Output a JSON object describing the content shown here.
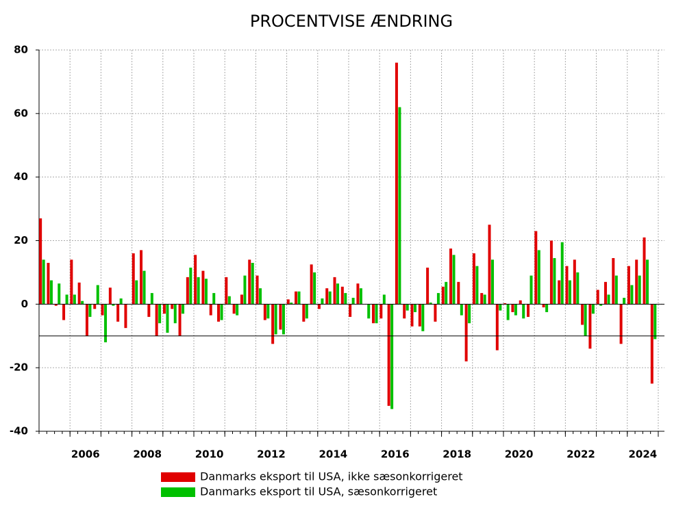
{
  "chart_data": {
    "type": "bar",
    "title": "PROCENTVISE ÆNDRING",
    "x": [
      2005.125,
      2005.375,
      2005.625,
      2005.875,
      2006.125,
      2006.375,
      2006.625,
      2006.875,
      2007.125,
      2007.375,
      2007.625,
      2007.875,
      2008.125,
      2008.375,
      2008.625,
      2008.875,
      2009.125,
      2009.375,
      2009.625,
      2009.875,
      2010.125,
      2010.375,
      2010.625,
      2010.875,
      2011.125,
      2011.375,
      2011.625,
      2011.875,
      2012.125,
      2012.375,
      2012.625,
      2012.875,
      2013.125,
      2013.375,
      2013.625,
      2013.875,
      2014.125,
      2014.375,
      2014.625,
      2014.875,
      2015.125,
      2015.375,
      2015.625,
      2015.875,
      2016.125,
      2016.375,
      2016.625,
      2016.875,
      2017.125,
      2017.375,
      2017.625,
      2017.875,
      2018.125,
      2018.375,
      2018.625,
      2018.875,
      2019.125,
      2019.375,
      2019.625,
      2019.875,
      2020.125,
      2020.375,
      2020.625,
      2020.875,
      2021.125,
      2021.375,
      2021.625,
      2021.875,
      2022.125,
      2022.375,
      2022.625,
      2022.875,
      2023.125,
      2023.375,
      2023.625,
      2023.875,
      2024.125,
      2024.375,
      2024.625,
      2024.875
    ],
    "series": [
      {
        "name": "Danmarks eksport til USA, ikke sæsonkorrigeret",
        "color": "#e00000",
        "values": [
          27,
          13,
          -0.5,
          -5,
          14,
          6.8,
          -10,
          -1.5,
          -3.5,
          5.2,
          -5.5,
          -7.5,
          16,
          17,
          -4,
          -10,
          -3,
          -1.5,
          -10,
          8.5,
          15.5,
          10.5,
          -3.5,
          -5.5,
          8.5,
          -3,
          3,
          14,
          9,
          -5,
          -12.5,
          -8,
          1.5,
          4,
          -5.5,
          12.5,
          -1.5,
          5,
          8.5,
          5.5,
          -4,
          6.5,
          0,
          -6,
          -4.5,
          -32,
          76,
          -4.5,
          -7,
          -7,
          11.5,
          -5.5,
          5.5,
          17.5,
          7,
          -18,
          16,
          3.5,
          25,
          -14.5,
          0.3,
          -2.5,
          1.2,
          -4,
          23,
          -1,
          20,
          7.5,
          12,
          14,
          -6.5,
          -14,
          4.5,
          7,
          14.5,
          -12.5,
          12,
          14,
          21,
          -25
        ]
      },
      {
        "name": "Danmarks eksport til USA, sæsonkorrigeret",
        "color": "#00c000",
        "values": [
          14,
          7.5,
          6.5,
          3,
          3,
          1,
          -4,
          6,
          -12,
          -0.5,
          1.8,
          0,
          7.5,
          10.5,
          3.5,
          -6,
          -9,
          -6,
          -3,
          11.5,
          8.5,
          8,
          3.5,
          -5,
          2.5,
          -3.5,
          9,
          13,
          5,
          -4.5,
          -9.5,
          -9.5,
          0.5,
          4,
          -4.5,
          10,
          1.8,
          4,
          6.5,
          3.5,
          2,
          5,
          -4.5,
          -6,
          3,
          -33,
          62,
          -2,
          -2.5,
          -8.5,
          0.5,
          3.5,
          7,
          15.5,
          -3.5,
          -6,
          12,
          3,
          14,
          -2,
          -5,
          -3.5,
          -4.5,
          9,
          17,
          -2.5,
          14.5,
          19.5,
          7.5,
          10,
          -10,
          -3,
          -0.5,
          3,
          9,
          2,
          6,
          9,
          14,
          -11
        ]
      }
    ],
    "xlim": [
      2005,
      2025.2
    ],
    "xticks": [
      {
        "value": 2006.5,
        "label": "2006"
      },
      {
        "value": 2008.5,
        "label": "2008"
      },
      {
        "value": 2010.5,
        "label": "2010"
      },
      {
        "value": 2012.5,
        "label": "2012"
      },
      {
        "value": 2014.5,
        "label": "2014"
      },
      {
        "value": 2016.5,
        "label": "2016"
      },
      {
        "value": 2018.5,
        "label": "2018"
      },
      {
        "value": 2020.5,
        "label": "2020"
      },
      {
        "value": 2022.5,
        "label": "2022"
      },
      {
        "value": 2024.5,
        "label": "2024"
      }
    ],
    "xgrid": [
      2006,
      2007,
      2008,
      2009,
      2010,
      2011,
      2012,
      2013,
      2014,
      2015,
      2016,
      2017,
      2018,
      2019,
      2020,
      2021,
      2022,
      2023,
      2024,
      2025
    ],
    "ylim": [
      -40,
      80
    ],
    "yticks": [
      -40,
      -20,
      0,
      20,
      40,
      60,
      80
    ],
    "grid": true,
    "reference_line": -10
  }
}
